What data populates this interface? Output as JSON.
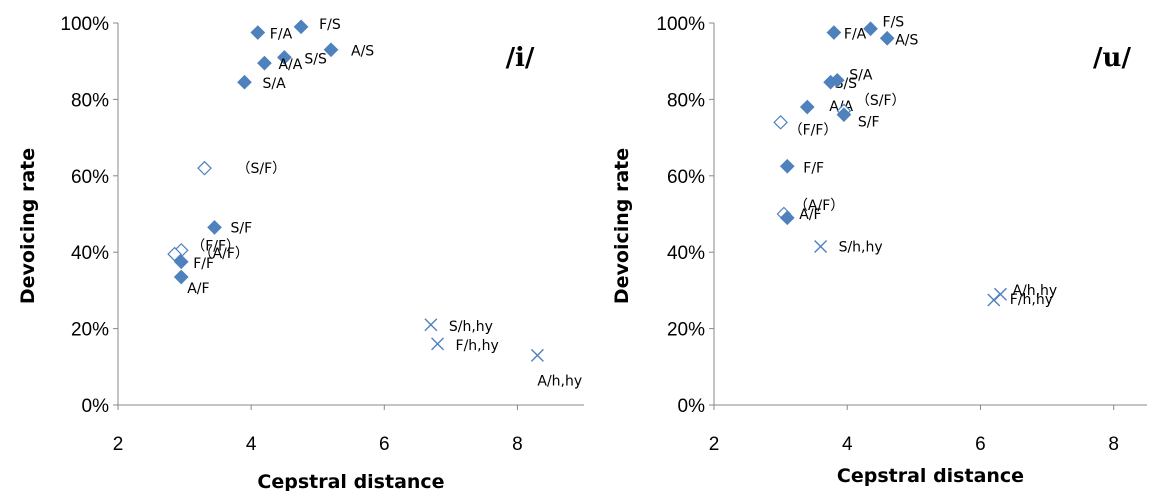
{
  "colors": {
    "marker": "#4F81BD",
    "axis": "#888888",
    "text": "#000000"
  },
  "chart_data": [
    {
      "type": "scatter",
      "title": "/i/",
      "xlabel": "Cepstral distance",
      "ylabel": "Devoicing rate",
      "xlim": [
        2,
        9
      ],
      "ylim": [
        0,
        100
      ],
      "xticks": [
        "2",
        "4",
        "6",
        "8"
      ],
      "yticks": [
        "0%",
        "20%",
        "40%",
        "60%",
        "80%",
        "100%"
      ],
      "grid": false,
      "points": [
        {
          "x": 4.1,
          "y": 97.5,
          "marker": "diamond-filled",
          "label": "F/A"
        },
        {
          "x": 4.75,
          "y": 99,
          "marker": "diamond-filled",
          "label": "F/S"
        },
        {
          "x": 4.5,
          "y": 91,
          "marker": "diamond-filled",
          "label": "S/S"
        },
        {
          "x": 5.2,
          "y": 93,
          "marker": "diamond-filled",
          "label": "A/S"
        },
        {
          "x": 4.2,
          "y": 89.5,
          "marker": "diamond-filled",
          "label": "A/A"
        },
        {
          "x": 3.9,
          "y": 84.5,
          "marker": "diamond-filled",
          "label": "S/A"
        },
        {
          "x": 3.3,
          "y": 62,
          "marker": "diamond-open",
          "label": "（S/F）"
        },
        {
          "x": 3.45,
          "y": 46.5,
          "marker": "diamond-filled",
          "label": "S/F"
        },
        {
          "x": 2.95,
          "y": 40.5,
          "marker": "diamond-open",
          "label": "（F/F）"
        },
        {
          "x": 2.85,
          "y": 39.5,
          "marker": "diamond-open",
          "label": "（A/F）"
        },
        {
          "x": 2.95,
          "y": 37.5,
          "marker": "diamond-filled",
          "label": "F/F"
        },
        {
          "x": 2.95,
          "y": 33.5,
          "marker": "diamond-filled",
          "label": "A/F"
        },
        {
          "x": 6.7,
          "y": 21,
          "marker": "x",
          "label": "S/h,hy"
        },
        {
          "x": 6.8,
          "y": 16,
          "marker": "x",
          "label": "F/h,hy"
        },
        {
          "x": 8.3,
          "y": 13,
          "marker": "x",
          "label": "A/h,hy"
        }
      ]
    },
    {
      "type": "scatter",
      "title": "/u/",
      "xlabel": "Cepstral distance",
      "ylabel": "Devoicing rate",
      "xlim": [
        2,
        8.5
      ],
      "ylim": [
        0,
        100
      ],
      "xticks": [
        "2",
        "4",
        "6",
        "8"
      ],
      "yticks": [
        "0%",
        "20%",
        "40%",
        "60%",
        "80%",
        "100%"
      ],
      "grid": false,
      "points": [
        {
          "x": 3.8,
          "y": 97.5,
          "marker": "diamond-filled",
          "label": "F/A"
        },
        {
          "x": 4.35,
          "y": 98.5,
          "marker": "diamond-filled",
          "label": "F/S"
        },
        {
          "x": 4.6,
          "y": 96,
          "marker": "diamond-filled",
          "label": "A/S"
        },
        {
          "x": 3.75,
          "y": 84.5,
          "marker": "diamond-filled",
          "label": "S/S"
        },
        {
          "x": 3.85,
          "y": 85,
          "marker": "diamond-filled",
          "label": "S/A"
        },
        {
          "x": 3.4,
          "y": 78,
          "marker": "diamond-filled",
          "label": "A/A"
        },
        {
          "x": 3.95,
          "y": 77,
          "marker": "diamond-open",
          "label": "（S/F）"
        },
        {
          "x": 3.95,
          "y": 76,
          "marker": "diamond-filled",
          "label": "S/F"
        },
        {
          "x": 3.0,
          "y": 74,
          "marker": "diamond-open",
          "label": "（F/F）"
        },
        {
          "x": 3.1,
          "y": 62.5,
          "marker": "diamond-filled",
          "label": "F/F"
        },
        {
          "x": 3.05,
          "y": 50,
          "marker": "diamond-open",
          "label": "（A/F）"
        },
        {
          "x": 3.1,
          "y": 49,
          "marker": "diamond-filled",
          "label": "A/F"
        },
        {
          "x": 3.6,
          "y": 41.5,
          "marker": "x",
          "label": "S/h,hy"
        },
        {
          "x": 6.3,
          "y": 29,
          "marker": "x",
          "label": "A/h,hy"
        },
        {
          "x": 6.2,
          "y": 27.5,
          "marker": "x",
          "label": "F/h,hy"
        }
      ]
    }
  ]
}
